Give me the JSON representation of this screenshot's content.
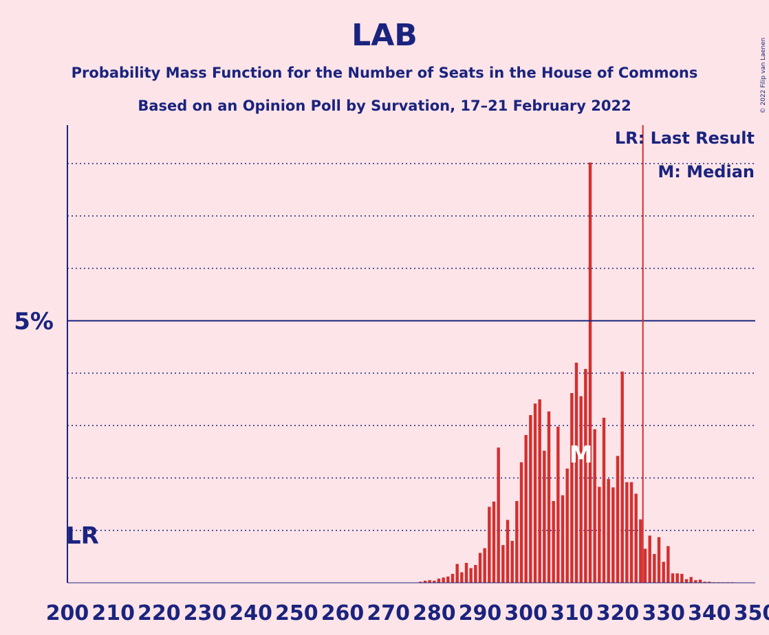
{
  "colors": {
    "background": "#fde4e8",
    "text": "#1a237e",
    "bar": "#d32f2f",
    "median_marker": "#ffffff"
  },
  "header": {
    "title": "LAB",
    "subtitle1": "Probability Mass Function for the Number of Seats in the House of Commons",
    "subtitle2": "Based on an Opinion Poll by Survation, 17–21 February 2022",
    "copyright": "© 2022 Filip van Laenen"
  },
  "chart_data": {
    "type": "bar",
    "title": "LAB",
    "xlim": [
      200,
      350
    ],
    "ylim": [
      0,
      8.72
    ],
    "x_ticks": [
      200,
      210,
      220,
      230,
      240,
      250,
      260,
      270,
      280,
      290,
      300,
      310,
      320,
      330,
      340,
      350
    ],
    "y_tick_label": "5%",
    "y_tick_value": 5,
    "gridlines": [
      1,
      2,
      3,
      4,
      6,
      7,
      8
    ],
    "last_result": {
      "label": "LR",
      "seats": 202,
      "line_seats": 326,
      "line_label": "LR: Last Result"
    },
    "median": {
      "label": "M",
      "seats": 312,
      "legend_label": "M: Median"
    },
    "x": [
      277,
      278,
      279,
      280,
      281,
      282,
      283,
      284,
      285,
      286,
      287,
      288,
      289,
      290,
      291,
      292,
      293,
      294,
      295,
      296,
      297,
      298,
      299,
      300,
      301,
      302,
      303,
      304,
      305,
      306,
      307,
      308,
      309,
      310,
      311,
      312,
      313,
      314,
      315,
      316,
      317,
      318,
      319,
      320,
      321,
      322,
      323,
      324,
      325,
      326,
      327,
      328,
      329,
      330,
      331,
      332,
      333,
      334,
      335,
      336,
      337,
      338,
      339,
      340,
      341,
      342,
      343,
      344,
      345
    ],
    "values": [
      0.02,
      0.04,
      0.05,
      0.04,
      0.08,
      0.1,
      0.12,
      0.17,
      0.36,
      0.2,
      0.38,
      0.28,
      0.34,
      0.57,
      0.66,
      1.45,
      1.55,
      2.58,
      0.72,
      1.2,
      0.8,
      1.56,
      2.3,
      2.82,
      3.2,
      3.42,
      3.5,
      2.52,
      3.27,
      1.56,
      2.98,
      1.67,
      2.18,
      3.62,
      4.2,
      3.56,
      4.08,
      8.02,
      2.93,
      1.83,
      3.15,
      1.98,
      1.82,
      2.42,
      4.03,
      1.92,
      1.92,
      1.7,
      1.21,
      0.65,
      0.9,
      0.55,
      0.87,
      0.4,
      0.7,
      0.18,
      0.18,
      0.17,
      0.07,
      0.11,
      0.05,
      0.06,
      0.02,
      0.02,
      0.01,
      0.01,
      0.01,
      0.01,
      0.01
    ]
  }
}
